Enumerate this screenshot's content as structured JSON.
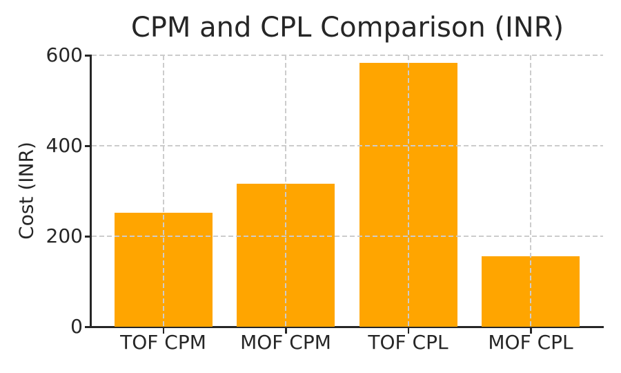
{
  "chart_data": {
    "type": "bar",
    "title": "CPM and CPL Comparison (INR)",
    "categories": [
      "TOF CPM",
      "MOF CPM",
      "TOF CPL",
      "MOF CPL"
    ],
    "values": [
      252,
      316,
      583,
      156
    ],
    "xlabel": "",
    "ylabel": "Cost (INR)",
    "ylim": [
      0,
      600
    ],
    "yticks": [
      0,
      200,
      400,
      600
    ],
    "grid": {
      "style": "dashed",
      "horizontal": true,
      "vertical": true,
      "drawn_above_bars": true
    },
    "legend": "none",
    "bar_color": "#FFA500"
  },
  "colors": {
    "bar": "#FFA500",
    "grid": "#cccccc",
    "text": "#262626",
    "spine": "#262626",
    "background": "#ffffff"
  }
}
